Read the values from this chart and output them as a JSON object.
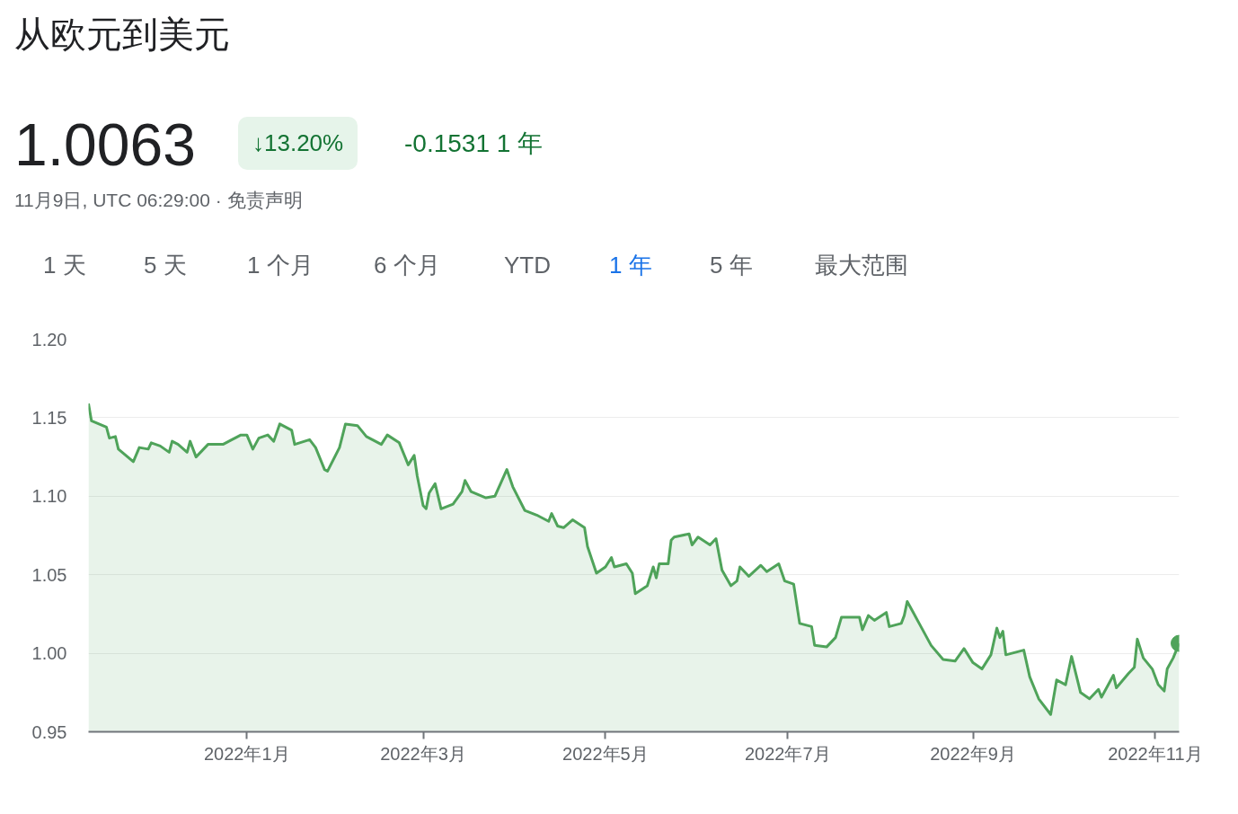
{
  "chart_data": {
    "type": "area",
    "title": "从欧元到美元",
    "annotations": [
      "1.0063",
      "↓13.20%",
      "-0.1531 1 年",
      "11月9日, UTC 06:29:00 · 免责声明",
      "1 天",
      "5 天",
      "1 个月",
      "6 个月",
      "YTD",
      "1 年",
      "5 年",
      "最大范围"
    ],
    "x": [
      "2021-11-09",
      "2021-11-10",
      "2021-11-15",
      "2021-11-16",
      "2021-11-18",
      "2021-11-19",
      "2021-11-24",
      "2021-11-26",
      "2021-11-29",
      "2021-11-30",
      "2021-12-03",
      "2021-12-06",
      "2021-12-07",
      "2021-12-09",
      "2021-12-12",
      "2021-12-13",
      "2021-12-15",
      "2021-12-19",
      "2021-12-24",
      "2021-12-28",
      "2021-12-30",
      "2022-01-01",
      "2022-01-03",
      "2022-01-05",
      "2022-01-08",
      "2022-01-10",
      "2022-01-12",
      "2022-01-16",
      "2022-01-17",
      "2022-01-22",
      "2022-01-24",
      "2022-01-27",
      "2022-01-28",
      "2022-02-01",
      "2022-02-03",
      "2022-02-07",
      "2022-02-10",
      "2022-02-12",
      "2022-02-15",
      "2022-02-17",
      "2022-02-21",
      "2022-02-24",
      "2022-02-26",
      "2022-02-27",
      "2022-03-01",
      "2022-03-02",
      "2022-03-03",
      "2022-03-05",
      "2022-03-07",
      "2022-03-11",
      "2022-03-14",
      "2022-03-15",
      "2022-03-17",
      "2022-03-22",
      "2022-03-25",
      "2022-03-29",
      "2022-03-31",
      "2022-04-04",
      "2022-04-08",
      "2022-04-12",
      "2022-04-13",
      "2022-04-15",
      "2022-04-17",
      "2022-04-20",
      "2022-04-24",
      "2022-04-25",
      "2022-04-28",
      "2022-05-01",
      "2022-05-03",
      "2022-05-04",
      "2022-05-08",
      "2022-05-10",
      "2022-05-11",
      "2022-05-15",
      "2022-05-17",
      "2022-05-18",
      "2022-05-19",
      "2022-05-22",
      "2022-05-23",
      "2022-05-24",
      "2022-05-29",
      "2022-05-30",
      "2022-06-01",
      "2022-06-05",
      "2022-06-07",
      "2022-06-09",
      "2022-06-12",
      "2022-06-14",
      "2022-06-15",
      "2022-06-18",
      "2022-06-22",
      "2022-06-24",
      "2022-06-28",
      "2022-06-30",
      "2022-07-03",
      "2022-07-05",
      "2022-07-09",
      "2022-07-10",
      "2022-07-14",
      "2022-07-17",
      "2022-07-19",
      "2022-07-21",
      "2022-07-25",
      "2022-07-26",
      "2022-07-28",
      "2022-07-30",
      "2022-08-03",
      "2022-08-04",
      "2022-08-08",
      "2022-08-09",
      "2022-08-10",
      "2022-08-14",
      "2022-08-18",
      "2022-08-22",
      "2022-08-26",
      "2022-08-29",
      "2022-09-01",
      "2022-09-04",
      "2022-09-07",
      "2022-09-09",
      "2022-09-10",
      "2022-09-11",
      "2022-09-12",
      "2022-09-18",
      "2022-09-20",
      "2022-09-23",
      "2022-09-27",
      "2022-09-29",
      "2022-10-02",
      "2022-10-04",
      "2022-10-07",
      "2022-10-10",
      "2022-10-13",
      "2022-10-14",
      "2022-10-18",
      "2022-10-19",
      "2022-10-23",
      "2022-10-25",
      "2022-10-26",
      "2022-10-28",
      "2022-10-31",
      "2022-11-02",
      "2022-11-04",
      "2022-11-05",
      "2022-11-07",
      "2022-11-09"
    ],
    "values": [
      1.159,
      1.148,
      1.144,
      1.137,
      1.138,
      1.13,
      1.122,
      1.131,
      1.13,
      1.134,
      1.132,
      1.128,
      1.135,
      1.133,
      1.128,
      1.135,
      1.125,
      1.133,
      1.133,
      1.137,
      1.139,
      1.139,
      1.13,
      1.137,
      1.139,
      1.135,
      1.146,
      1.142,
      1.133,
      1.136,
      1.131,
      1.117,
      1.116,
      1.131,
      1.146,
      1.145,
      1.138,
      1.136,
      1.133,
      1.139,
      1.134,
      1.12,
      1.126,
      1.113,
      1.094,
      1.092,
      1.102,
      1.108,
      1.092,
      1.095,
      1.103,
      1.11,
      1.103,
      1.099,
      1.1,
      1.117,
      1.106,
      1.091,
      1.088,
      1.084,
      1.089,
      1.081,
      1.08,
      1.085,
      1.08,
      1.068,
      1.051,
      1.055,
      1.061,
      1.055,
      1.057,
      1.051,
      1.038,
      1.043,
      1.055,
      1.048,
      1.057,
      1.057,
      1.072,
      1.074,
      1.076,
      1.069,
      1.074,
      1.069,
      1.073,
      1.053,
      1.043,
      1.046,
      1.055,
      1.049,
      1.056,
      1.052,
      1.057,
      1.046,
      1.044,
      1.019,
      1.017,
      1.005,
      1.004,
      1.01,
      1.023,
      1.023,
      1.023,
      1.015,
      1.024,
      1.021,
      1.026,
      1.017,
      1.019,
      1.024,
      1.033,
      1.019,
      1.005,
      0.996,
      0.995,
      1.003,
      0.994,
      0.99,
      0.999,
      1.016,
      1.01,
      1.014,
      0.999,
      1.002,
      0.985,
      0.971,
      0.961,
      0.983,
      0.98,
      0.998,
      0.975,
      0.971,
      0.977,
      0.972,
      0.986,
      0.978,
      0.987,
      0.991,
      1.009,
      0.997,
      0.99,
      0.98,
      0.976,
      0.99,
      0.997,
      1.0063
    ],
    "color": "#4fa35a",
    "xlim": [
      "2021-11-09",
      "2022-11-09"
    ],
    "xticks": [
      {
        "value": "2022-01-01",
        "label": "2022年1月"
      },
      {
        "value": "2022-03-01",
        "label": "2022年3月"
      },
      {
        "value": "2022-05-01",
        "label": "2022年5月"
      },
      {
        "value": "2022-07-01",
        "label": "2022年7月"
      },
      {
        "value": "2022-09-01",
        "label": "2022年9月"
      },
      {
        "value": "2022-11-01",
        "label": "2022年11月"
      }
    ],
    "ylim": [
      0.95,
      1.2
    ],
    "yticks": [
      0.95,
      {
        "value": 1.0,
        "label": "1.00"
      },
      1.05,
      {
        "value": 1.1,
        "label": "1.10"
      },
      1.15,
      {
        "value": 1.2,
        "label": "1.20"
      }
    ],
    "grid": "y"
  }
}
